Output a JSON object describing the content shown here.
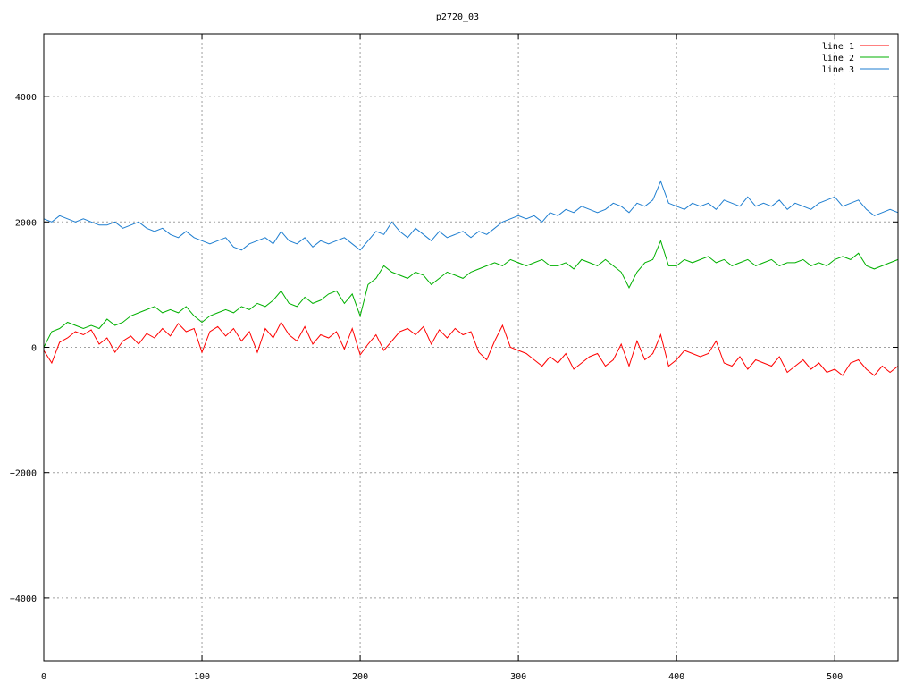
{
  "chart_data": {
    "type": "line",
    "title": "p2720_03",
    "xlabel": "",
    "ylabel": "",
    "xlim": [
      0,
      540
    ],
    "ylim": [
      -5000,
      5000
    ],
    "x_ticks": [
      0,
      100,
      200,
      300,
      400,
      500
    ],
    "y_ticks": [
      -4000,
      -2000,
      0,
      2000,
      4000
    ],
    "grid": true,
    "legend_position": "top-right",
    "series": [
      {
        "name": "line 1",
        "color": "#ff0000",
        "x": [
          0,
          5,
          10,
          15,
          20,
          25,
          30,
          35,
          40,
          45,
          50,
          55,
          60,
          65,
          70,
          75,
          80,
          85,
          90,
          95,
          100,
          105,
          110,
          115,
          120,
          125,
          130,
          135,
          140,
          145,
          150,
          155,
          160,
          165,
          170,
          175,
          180,
          185,
          190,
          195,
          200,
          205,
          210,
          215,
          220,
          225,
          230,
          235,
          240,
          245,
          250,
          255,
          260,
          265,
          270,
          275,
          280,
          285,
          290,
          295,
          300,
          305,
          310,
          315,
          320,
          325,
          330,
          335,
          340,
          345,
          350,
          355,
          360,
          365,
          370,
          375,
          380,
          385,
          390,
          395,
          400,
          405,
          410,
          415,
          420,
          425,
          430,
          435,
          440,
          445,
          450,
          455,
          460,
          465,
          470,
          475,
          480,
          485,
          490,
          495,
          500,
          505,
          510,
          515,
          520,
          525,
          530,
          535,
          540
        ],
        "y": [
          -50,
          -250,
          80,
          150,
          250,
          200,
          280,
          50,
          150,
          -80,
          100,
          180,
          50,
          220,
          150,
          300,
          180,
          380,
          250,
          300,
          -80,
          250,
          330,
          180,
          300,
          100,
          250,
          -80,
          300,
          150,
          400,
          200,
          100,
          330,
          50,
          200,
          150,
          250,
          -30,
          300,
          -120,
          50,
          200,
          -50,
          100,
          250,
          300,
          200,
          330,
          50,
          280,
          150,
          300,
          200,
          250,
          -80,
          -200,
          100,
          350,
          0,
          -50,
          -100,
          -200,
          -300,
          -150,
          -250,
          -100,
          -350,
          -250,
          -150,
          -100,
          -300,
          -200,
          50,
          -300,
          100,
          -200,
          -100,
          200,
          -300,
          -200,
          -50,
          -100,
          -150,
          -100,
          100,
          -250,
          -300,
          -150,
          -350,
          -200,
          -250,
          -300,
          -150,
          -400,
          -300,
          -200,
          -350,
          -250,
          -400,
          -350,
          -450,
          -250,
          -200,
          -350,
          -450,
          -300,
          -400,
          -300
        ]
      },
      {
        "name": "line 2",
        "color": "#00b000",
        "x": [
          0,
          5,
          10,
          15,
          20,
          25,
          30,
          35,
          40,
          45,
          50,
          55,
          60,
          65,
          70,
          75,
          80,
          85,
          90,
          95,
          100,
          105,
          110,
          115,
          120,
          125,
          130,
          135,
          140,
          145,
          150,
          155,
          160,
          165,
          170,
          175,
          180,
          185,
          190,
          195,
          200,
          205,
          210,
          215,
          220,
          225,
          230,
          235,
          240,
          245,
          250,
          255,
          260,
          265,
          270,
          275,
          280,
          285,
          290,
          295,
          300,
          305,
          310,
          315,
          320,
          325,
          330,
          335,
          340,
          345,
          350,
          355,
          360,
          365,
          370,
          375,
          380,
          385,
          390,
          395,
          400,
          405,
          410,
          415,
          420,
          425,
          430,
          435,
          440,
          445,
          450,
          455,
          460,
          465,
          470,
          475,
          480,
          485,
          490,
          495,
          500,
          505,
          510,
          515,
          520,
          525,
          530,
          535,
          540
        ],
        "y": [
          0,
          250,
          300,
          400,
          350,
          300,
          350,
          300,
          450,
          350,
          400,
          500,
          550,
          600,
          650,
          550,
          600,
          550,
          650,
          500,
          400,
          500,
          550,
          600,
          550,
          650,
          600,
          700,
          650,
          750,
          900,
          700,
          650,
          800,
          700,
          750,
          850,
          900,
          700,
          850,
          500,
          1000,
          1100,
          1300,
          1200,
          1150,
          1100,
          1200,
          1150,
          1000,
          1100,
          1200,
          1150,
          1100,
          1200,
          1250,
          1300,
          1350,
          1300,
          1400,
          1350,
          1300,
          1350,
          1400,
          1300,
          1300,
          1350,
          1250,
          1400,
          1350,
          1300,
          1400,
          1300,
          1200,
          950,
          1200,
          1350,
          1400,
          1700,
          1300,
          1300,
          1400,
          1350,
          1400,
          1450,
          1350,
          1400,
          1300,
          1350,
          1400,
          1300,
          1350,
          1400,
          1300,
          1350,
          1350,
          1400,
          1300,
          1350,
          1300,
          1400,
          1450,
          1400,
          1500,
          1300,
          1250,
          1300,
          1350,
          1400
        ]
      },
      {
        "name": "line 3",
        "color": "#1e7ed0",
        "x": [
          0,
          5,
          10,
          15,
          20,
          25,
          30,
          35,
          40,
          45,
          50,
          55,
          60,
          65,
          70,
          75,
          80,
          85,
          90,
          95,
          100,
          105,
          110,
          115,
          120,
          125,
          130,
          135,
          140,
          145,
          150,
          155,
          160,
          165,
          170,
          175,
          180,
          185,
          190,
          195,
          200,
          205,
          210,
          215,
          220,
          225,
          230,
          235,
          240,
          245,
          250,
          255,
          260,
          265,
          270,
          275,
          280,
          285,
          290,
          295,
          300,
          305,
          310,
          315,
          320,
          325,
          330,
          335,
          340,
          345,
          350,
          355,
          360,
          365,
          370,
          375,
          380,
          385,
          390,
          395,
          400,
          405,
          410,
          415,
          420,
          425,
          430,
          435,
          440,
          445,
          450,
          455,
          460,
          465,
          470,
          475,
          480,
          485,
          490,
          495,
          500,
          505,
          510,
          515,
          520,
          525,
          530,
          535,
          540
        ],
        "y": [
          2050,
          2000,
          2100,
          2050,
          2000,
          2050,
          2000,
          1950,
          1950,
          2000,
          1900,
          1950,
          2000,
          1900,
          1850,
          1900,
          1800,
          1750,
          1850,
          1750,
          1700,
          1650,
          1700,
          1750,
          1600,
          1550,
          1650,
          1700,
          1750,
          1650,
          1850,
          1700,
          1650,
          1750,
          1600,
          1700,
          1650,
          1700,
          1750,
          1650,
          1550,
          1700,
          1850,
          1800,
          2000,
          1850,
          1750,
          1900,
          1800,
          1700,
          1850,
          1750,
          1800,
          1850,
          1750,
          1850,
          1800,
          1900,
          2000,
          2050,
          2100,
          2050,
          2100,
          2000,
          2150,
          2100,
          2200,
          2150,
          2250,
          2200,
          2150,
          2200,
          2300,
          2250,
          2150,
          2300,
          2250,
          2350,
          2650,
          2300,
          2250,
          2200,
          2300,
          2250,
          2300,
          2200,
          2350,
          2300,
          2250,
          2400,
          2250,
          2300,
          2250,
          2350,
          2200,
          2300,
          2250,
          2200,
          2300,
          2350,
          2400,
          2250,
          2300,
          2350,
          2200,
          2100,
          2150,
          2200,
          2150
        ]
      }
    ]
  }
}
